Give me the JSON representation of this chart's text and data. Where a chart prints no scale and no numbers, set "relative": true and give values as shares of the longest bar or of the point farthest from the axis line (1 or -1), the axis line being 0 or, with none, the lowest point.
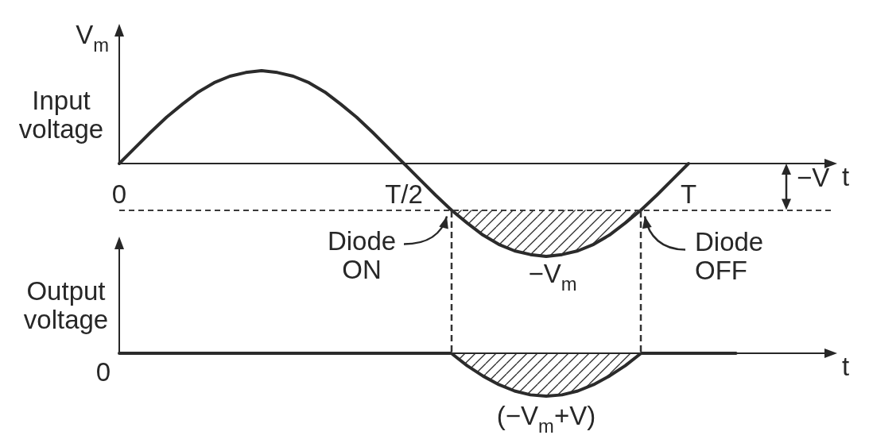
{
  "chart_data": [
    {
      "type": "line",
      "ylabel": "Input voltage",
      "xlabel": "t",
      "relative": true,
      "categories": [
        "0",
        null,
        null,
        null,
        null,
        null,
        null,
        null,
        null,
        null,
        null,
        null,
        null,
        null,
        null,
        null,
        null,
        null,
        "T/2",
        null,
        null,
        null,
        null,
        null,
        null,
        null,
        null,
        null,
        null,
        null,
        null,
        null,
        null,
        null,
        null,
        null,
        "T",
        null,
        null,
        null,
        null,
        null,
        null,
        null,
        null,
        null
      ],
      "series": [
        {
          "color": "#2b2b2b",
          "values": [
            0,
            0.17,
            0.34,
            0.5,
            0.64,
            0.77,
            0.87,
            0.94,
            0.98,
            1,
            0.98,
            0.94,
            0.87,
            0.77,
            0.64,
            0.5,
            0.34,
            0.17,
            0,
            -0.17,
            -0.34,
            -0.5,
            -0.64,
            -0.77,
            -0.87,
            -0.94,
            -0.98,
            -1,
            -0.98,
            -0.94,
            -0.87,
            -0.77,
            -0.64,
            -0.5,
            -0.34,
            -0.17,
            0,
            null,
            null,
            null,
            null,
            null,
            null,
            null,
            null,
            null
          ],
          "lower": [
            null,
            null,
            null,
            null,
            null,
            null,
            null,
            null,
            null,
            null,
            null,
            null,
            null,
            null,
            null,
            null,
            null,
            null,
            null,
            null,
            null,
            -0.5,
            -0.64,
            -0.77,
            -0.87,
            -0.94,
            -0.98,
            -1,
            -0.98,
            -0.94,
            -0.87,
            -0.77,
            -0.64,
            -0.5,
            null,
            null,
            null,
            null,
            null,
            null,
            null,
            null,
            null,
            null,
            null,
            null
          ],
          "upper": [
            null,
            null,
            null,
            null,
            null,
            null,
            null,
            null,
            null,
            null,
            null,
            null,
            null,
            null,
            null,
            null,
            null,
            null,
            null,
            null,
            null,
            -0.5,
            -0.5,
            -0.5,
            -0.5,
            -0.5,
            -0.5,
            -0.5,
            -0.5,
            -0.5,
            -0.5,
            -0.5,
            -0.5,
            -0.5,
            null,
            null,
            null,
            null,
            null,
            null,
            null,
            null,
            null,
            null,
            null,
            null
          ]
        }
      ],
      "ref_lines": [
        {
          "axis": "y",
          "value": -0.5,
          "label": "−V",
          "line_style": "dashed"
        }
      ],
      "annotations": [
        "V$_{m}$",
        {
          "text": "Diode ON",
          "y": -0.5
        },
        {
          "text": "Diode OFF",
          "y": -0.5
        },
        {
          "text": "−V$_{m}$",
          "y": -1
        }
      ]
    },
    {
      "type": "area",
      "ylabel": "Output voltage",
      "xlabel": "t",
      "relative": true,
      "categories": [
        null,
        null,
        null,
        null,
        null,
        null,
        null,
        null,
        null,
        null,
        null,
        null,
        null,
        null,
        null,
        null,
        null,
        null,
        null,
        null,
        null,
        null,
        null,
        null,
        null,
        null,
        null,
        null,
        null,
        null,
        null,
        null,
        null,
        null,
        null,
        null,
        null,
        null,
        null,
        null,
        null,
        null,
        null,
        null,
        null,
        null
      ],
      "series": [
        {
          "color": "#2b2b2b",
          "values": [
            0,
            0,
            0,
            0,
            0,
            0,
            0,
            0,
            0,
            0,
            0,
            0,
            0,
            0,
            0,
            0,
            0,
            0,
            0,
            0,
            0,
            0,
            -0.29,
            -0.53,
            -0.73,
            -0.88,
            -0.97,
            -1,
            -0.97,
            -0.88,
            -0.73,
            -0.53,
            -0.29,
            0,
            0,
            0,
            0,
            0,
            0,
            0,
            null,
            null,
            null,
            null,
            null,
            null
          ]
        }
      ],
      "annotations": [
        "0",
        {
          "text": "(−V$_{m}$+V)",
          "y": -1
        }
      ]
    }
  ]
}
